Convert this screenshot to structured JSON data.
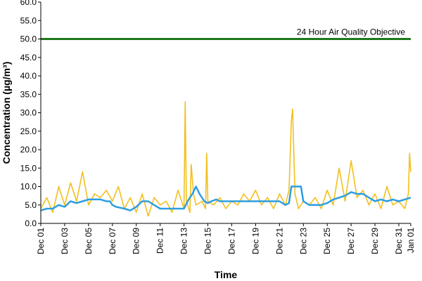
{
  "chart_data": {
    "type": "line",
    "title": "",
    "xlabel": "Time",
    "ylabel": "Concentration (µg/m³)",
    "ylim": [
      0,
      60
    ],
    "y_ticks": [
      "0.0",
      "5.0",
      "10.0",
      "15.0",
      "20.0",
      "25.0",
      "30.0",
      "35.0",
      "40.0",
      "45.0",
      "50.0",
      "55.0",
      "60.0"
    ],
    "x_tick_labels": [
      "Dec 01",
      "Dec 03",
      "Dec 05",
      "Dec 07",
      "Dec 09",
      "Dec 11",
      "Dec 13",
      "Dec 15",
      "Dec 17",
      "Dec 19",
      "Dec 21",
      "Dec 23",
      "Dec 25",
      "Dec 27",
      "Dec 29",
      "Dec 31",
      "Jan 01"
    ],
    "x_range_days": [
      1,
      32
    ],
    "grid": false,
    "legend": "none",
    "colors": {
      "hourly": "#f2c01e",
      "rolling": "#2d9ee0",
      "objective": "#1b7a1b"
    },
    "objective": {
      "value": 50,
      "label": "24 Hour Air Quality Objective"
    },
    "series": [
      {
        "style": "hourly",
        "x": [
          1.0,
          1.5,
          2.0,
          2.5,
          3.0,
          3.5,
          4.0,
          4.5,
          5.0,
          5.5,
          6.0,
          6.5,
          7.0,
          7.5,
          8.0,
          8.5,
          9.0,
          9.5,
          10.0,
          10.5,
          11.0,
          11.5,
          12.0,
          12.5,
          13.0,
          13.1,
          13.2,
          13.5,
          13.6,
          13.8,
          14.0,
          14.5,
          14.8,
          14.9,
          15.0,
          15.5,
          16.0,
          16.5,
          17.0,
          17.5,
          18.0,
          18.5,
          19.0,
          19.5,
          20.0,
          20.5,
          21.0,
          21.5,
          21.8,
          22.0,
          22.1,
          22.3,
          22.6,
          23.0,
          23.5,
          24.0,
          24.5,
          25.0,
          25.5,
          26.0,
          26.5,
          27.0,
          27.5,
          28.0,
          28.5,
          29.0,
          29.5,
          30.0,
          30.5,
          31.0,
          31.5,
          31.8,
          31.9,
          32.0
        ],
        "values": [
          4,
          7,
          3,
          10,
          5,
          11,
          6,
          14,
          5,
          8,
          7,
          9,
          6,
          10,
          4,
          7,
          3,
          8,
          2,
          7,
          5,
          6,
          3,
          9,
          4,
          33,
          6,
          3,
          16,
          8,
          5,
          6,
          4,
          19,
          6,
          5,
          7,
          4,
          6,
          5,
          8,
          6,
          9,
          5,
          7,
          4,
          8,
          5,
          9,
          28,
          31,
          8,
          4,
          6,
          5,
          7,
          4,
          9,
          5,
          15,
          6,
          17,
          7,
          9,
          5,
          8,
          4,
          10,
          5,
          6,
          4,
          8,
          19,
          14
        ]
      },
      {
        "style": "rolling",
        "x": [
          1.0,
          1.5,
          2.0,
          2.5,
          3.0,
          3.5,
          4.0,
          4.5,
          5.0,
          6.0,
          6.5,
          6.8,
          7.0,
          7.3,
          8.0,
          8.5,
          9.0,
          9.5,
          10.0,
          10.5,
          11.0,
          12.0,
          12.5,
          13.0,
          13.3,
          13.7,
          14.0,
          14.3,
          14.7,
          15.0,
          15.3,
          15.7,
          16.0,
          17.0,
          18.0,
          19.0,
          20.0,
          21.0,
          21.5,
          21.8,
          22.0,
          22.3,
          22.5,
          22.8,
          23.0,
          23.5,
          24.0,
          24.5,
          25.0,
          25.5,
          26.0,
          26.5,
          27.0,
          27.5,
          28.0,
          28.5,
          29.0,
          29.5,
          30.0,
          30.5,
          31.0,
          31.5,
          32.0
        ],
        "values": [
          3.5,
          4,
          4,
          5,
          4.5,
          6,
          5.5,
          6,
          6.5,
          6.5,
          6,
          6,
          5,
          4.5,
          4,
          3.5,
          4.5,
          6,
          6,
          5,
          4,
          4,
          4,
          4,
          6,
          8,
          10,
          8,
          6,
          5.5,
          6,
          6.5,
          6,
          6,
          6,
          6,
          6,
          6,
          5,
          5.5,
          10,
          10,
          10,
          10,
          6,
          5,
          5,
          5,
          5.5,
          6.5,
          7,
          7.5,
          8.5,
          8,
          8,
          7,
          6,
          6.5,
          6,
          6.5,
          6,
          6.5,
          7
        ]
      }
    ]
  }
}
